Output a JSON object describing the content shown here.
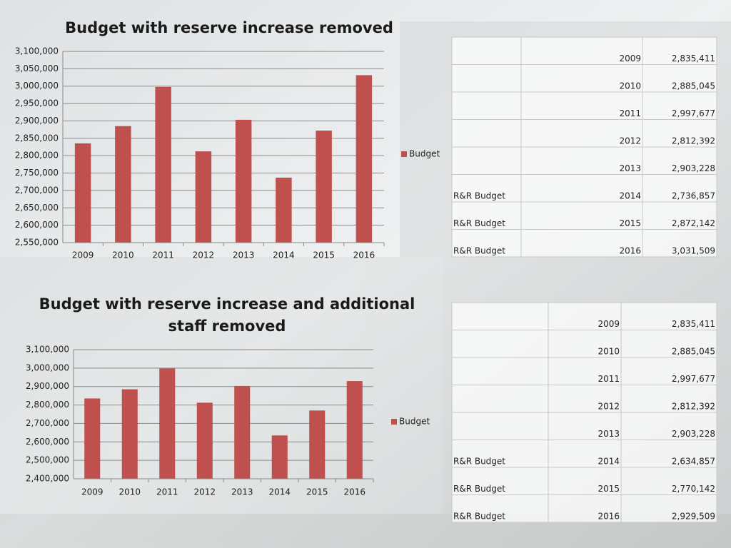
{
  "chart_data": [
    {
      "type": "bar",
      "title": [
        "Budget with reserve increase removed"
      ],
      "categories": [
        "2009",
        "2010",
        "2011",
        "2012",
        "2013",
        "2014",
        "2015",
        "2016"
      ],
      "series": [
        {
          "name": "Budget",
          "color": "#c0504d",
          "values": [
            2835411,
            2885045,
            2997677,
            2812392,
            2903228,
            2736857,
            2872142,
            3031509
          ]
        }
      ],
      "ylim": [
        2550000,
        3100000
      ],
      "yticks": [
        {
          "value": 2550000,
          "label": "2,550,000"
        },
        {
          "value": 2600000,
          "label": "2,600,000"
        },
        {
          "value": 2650000,
          "label": "2,650,000"
        },
        {
          "value": 2700000,
          "label": "2,700,000"
        },
        {
          "value": 2750000,
          "label": "2,750,000"
        },
        {
          "value": 2800000,
          "label": "2,800,000"
        },
        {
          "value": 2850000,
          "label": "2,850,000"
        },
        {
          "value": 2900000,
          "label": "2,900,000"
        },
        {
          "value": 2950000,
          "label": "2,950,000"
        },
        {
          "value": 3000000,
          "label": "3,000,000"
        },
        {
          "value": 3050000,
          "label": "3,050,000"
        },
        {
          "value": 3100000,
          "label": "3,100,000"
        }
      ],
      "grid": true,
      "legend": "right"
    },
    {
      "type": "bar",
      "title": [
        "Budget with reserve increase and additional",
        "staff removed"
      ],
      "categories": [
        "2009",
        "2010",
        "2011",
        "2012",
        "2013",
        "2014",
        "2015",
        "2016"
      ],
      "series": [
        {
          "name": "Budget",
          "color": "#c0504d",
          "values": [
            2835411,
            2885045,
            2997677,
            2812392,
            2903228,
            2634857,
            2770142,
            2929509
          ]
        }
      ],
      "ylim": [
        2400000,
        3100000
      ],
      "yticks": [
        {
          "value": 2400000,
          "label": "2,400,000"
        },
        {
          "value": 2500000,
          "label": "2,500,000"
        },
        {
          "value": 2600000,
          "label": "2,600,000"
        },
        {
          "value": 2700000,
          "label": "2,700,000"
        },
        {
          "value": 2800000,
          "label": "2,800,000"
        },
        {
          "value": 2900000,
          "label": "2,900,000"
        },
        {
          "value": 3000000,
          "label": "3,000,000"
        },
        {
          "value": 3100000,
          "label": "3,100,000"
        }
      ],
      "grid": true,
      "legend": "right"
    }
  ],
  "tables": [
    {
      "rows": [
        {
          "year": "2009",
          "value": "2,835,411"
        },
        {
          "year": "2010",
          "value": "2,885,045"
        },
        {
          "year": "2011",
          "value": "2,997,677"
        },
        {
          "year": "2012",
          "value": "2,812,392"
        },
        {
          "year": "2013",
          "value": "2,903,228"
        },
        {
          "label": "R&R Budget",
          "year": "2014",
          "value": "2,736,857"
        },
        {
          "label": "R&R Budget",
          "year": "2015",
          "value": "2,872,142"
        },
        {
          "label": "R&R Budget",
          "year": "2016",
          "value": "3,031,509"
        }
      ]
    },
    {
      "rows": [
        {
          "year": "2009",
          "value": "2,835,411"
        },
        {
          "year": "2010",
          "value": "2,885,045"
        },
        {
          "year": "2011",
          "value": "2,997,677"
        },
        {
          "year": "2012",
          "value": "2,812,392"
        },
        {
          "year": "2013",
          "value": "2,903,228"
        },
        {
          "label": "R&R Budget",
          "year": "2014",
          "value": "2,634,857"
        },
        {
          "label": "R&R Budget",
          "year": "2015",
          "value": "2,770,142"
        },
        {
          "label": "R&R Budget",
          "year": "2016",
          "value": "2,929,509"
        }
      ]
    }
  ]
}
